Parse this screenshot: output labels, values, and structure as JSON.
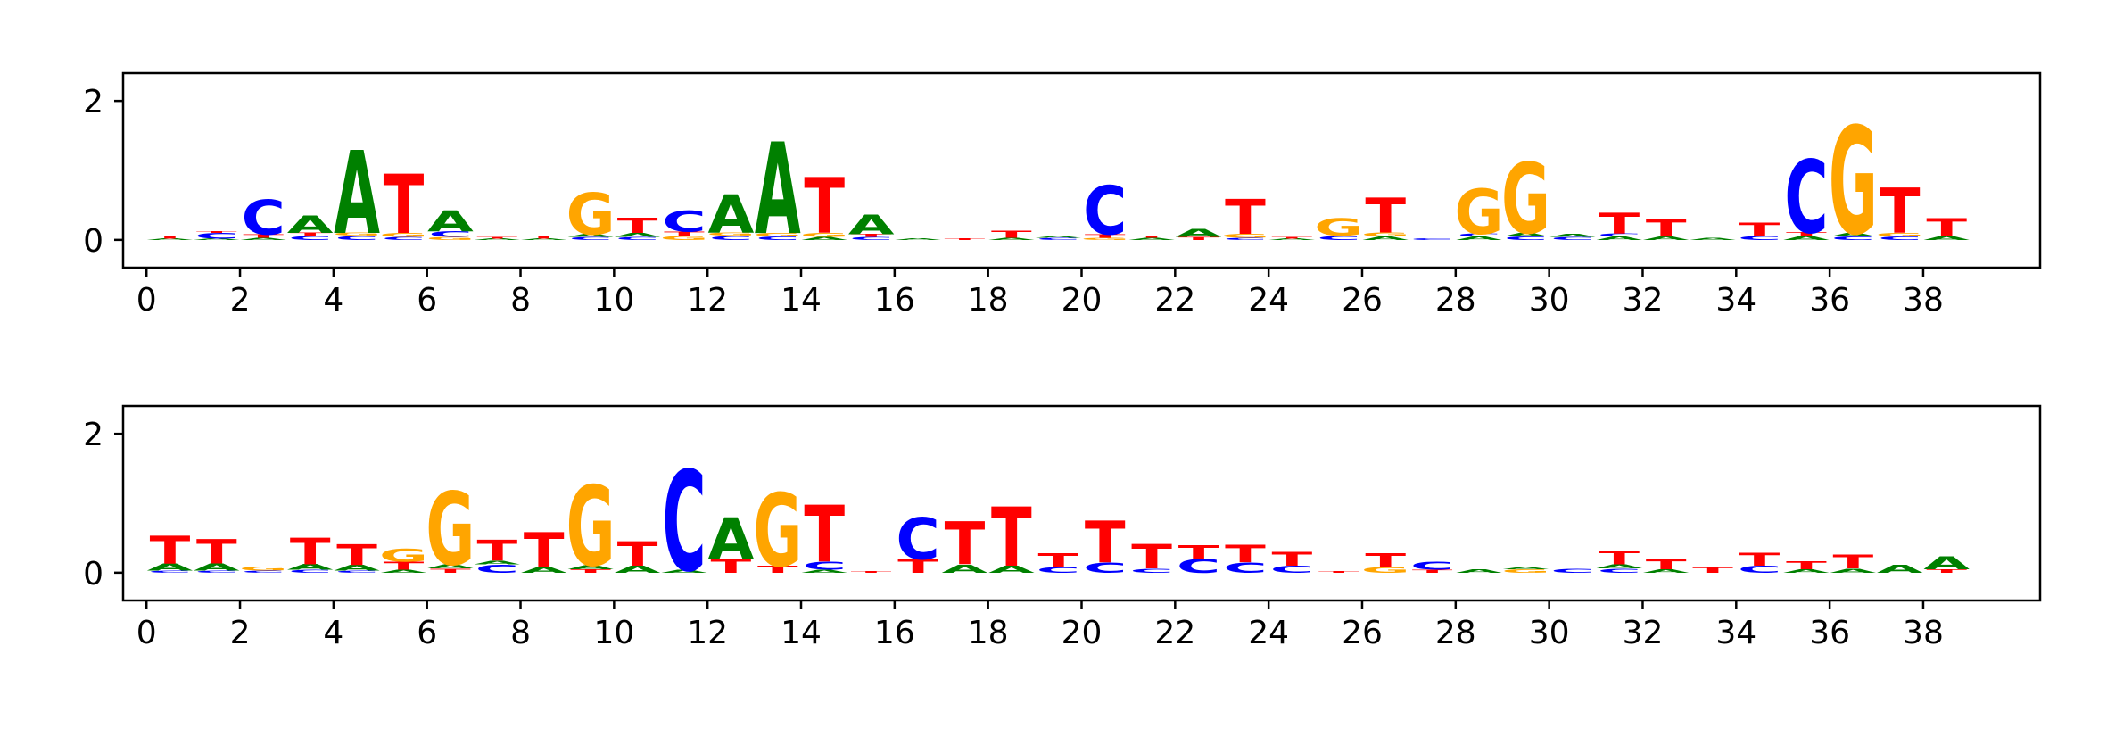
{
  "colors": {
    "A": "#008000",
    "C": "#0000ff",
    "G": "#ffa500",
    "T": "#ff0000",
    "axis": "#000000"
  },
  "chart_data": [
    {
      "type": "sequence-logo",
      "x_ticks": [
        "0",
        "2",
        "4",
        "6",
        "8",
        "10",
        "12",
        "14",
        "16",
        "18",
        "20",
        "22",
        "24",
        "26",
        "28",
        "30",
        "32",
        "34",
        "36",
        "38"
      ],
      "y_ticks": [
        "0",
        "2"
      ],
      "xlim": [
        -0.5,
        40.5
      ],
      "ylim": [
        -0.4,
        2.4
      ],
      "positions": [
        {
          "x": 0,
          "stack": [
            [
              "A",
              0.02
            ],
            [
              "T",
              0.04
            ]
          ]
        },
        {
          "x": 1,
          "stack": [
            [
              "A",
              0.02
            ],
            [
              "C",
              0.08
            ],
            [
              "T",
              0.02
            ]
          ]
        },
        {
          "x": 2,
          "stack": [
            [
              "A",
              0.03
            ],
            [
              "T",
              0.05
            ],
            [
              "C",
              0.5
            ]
          ]
        },
        {
          "x": 3,
          "stack": [
            [
              "C",
              0.06
            ],
            [
              "T",
              0.04
            ],
            [
              "A",
              0.25
            ]
          ]
        },
        {
          "x": 4,
          "stack": [
            [
              "C",
              0.06
            ],
            [
              "G",
              0.04
            ],
            [
              "A",
              1.2
            ]
          ]
        },
        {
          "x": 5,
          "stack": [
            [
              "C",
              0.04
            ],
            [
              "G",
              0.06
            ],
            [
              "T",
              0.85
            ]
          ]
        },
        {
          "x": 6,
          "stack": [
            [
              "G",
              0.04
            ],
            [
              "C",
              0.08
            ],
            [
              "A",
              0.3
            ]
          ]
        },
        {
          "x": 7,
          "stack": [
            [
              "A",
              0.02
            ],
            [
              "T",
              0.02
            ]
          ]
        },
        {
          "x": 8,
          "stack": [
            [
              "A",
              0.02
            ],
            [
              "T",
              0.04
            ]
          ]
        },
        {
          "x": 9,
          "stack": [
            [
              "C",
              0.04
            ],
            [
              "A",
              0.04
            ],
            [
              "G",
              0.6
            ]
          ]
        },
        {
          "x": 10,
          "stack": [
            [
              "C",
              0.04
            ],
            [
              "A",
              0.06
            ],
            [
              "T",
              0.22
            ]
          ]
        },
        {
          "x": 11,
          "stack": [
            [
              "G",
              0.06
            ],
            [
              "T",
              0.06
            ],
            [
              "C",
              0.3
            ]
          ]
        },
        {
          "x": 12,
          "stack": [
            [
              "C",
              0.06
            ],
            [
              "G",
              0.04
            ],
            [
              "A",
              0.55
            ]
          ]
        },
        {
          "x": 13,
          "stack": [
            [
              "C",
              0.05
            ],
            [
              "G",
              0.05
            ],
            [
              "A",
              1.32
            ]
          ]
        },
        {
          "x": 14,
          "stack": [
            [
              "A",
              0.04
            ],
            [
              "G",
              0.06
            ],
            [
              "T",
              0.8
            ]
          ]
        },
        {
          "x": 15,
          "stack": [
            [
              "C",
              0.04
            ],
            [
              "T",
              0.04
            ],
            [
              "A",
              0.28
            ]
          ]
        },
        {
          "x": 16,
          "stack": [
            [
              "A",
              0.02
            ]
          ]
        },
        {
          "x": 17,
          "stack": [
            [
              "T",
              0.02
            ]
          ]
        },
        {
          "x": 18,
          "stack": [
            [
              "A",
              0.03
            ],
            [
              "T",
              0.1
            ]
          ]
        },
        {
          "x": 19,
          "stack": [
            [
              "C",
              0.03
            ],
            [
              "A",
              0.02
            ]
          ]
        },
        {
          "x": 20,
          "stack": [
            [
              "G",
              0.03
            ],
            [
              "T",
              0.05
            ],
            [
              "C",
              0.7
            ]
          ]
        },
        {
          "x": 21,
          "stack": [
            [
              "A",
              0.03
            ],
            [
              "T",
              0.02
            ]
          ]
        },
        {
          "x": 22,
          "stack": [
            [
              "T",
              0.04
            ],
            [
              "A",
              0.12
            ]
          ]
        },
        {
          "x": 23,
          "stack": [
            [
              "C",
              0.03
            ],
            [
              "G",
              0.06
            ],
            [
              "T",
              0.5
            ]
          ]
        },
        {
          "x": 24,
          "stack": [
            [
              "A",
              0.02
            ],
            [
              "T",
              0.02
            ]
          ]
        },
        {
          "x": 25,
          "stack": [
            [
              "C",
              0.06
            ],
            [
              "G",
              0.25
            ]
          ]
        },
        {
          "x": 26,
          "stack": [
            [
              "A",
              0.05
            ],
            [
              "G",
              0.06
            ],
            [
              "T",
              0.5
            ]
          ]
        },
        {
          "x": 27,
          "stack": [
            [
              "C",
              0.02
            ]
          ]
        },
        {
          "x": 28,
          "stack": [
            [
              "A",
              0.05
            ],
            [
              "C",
              0.04
            ],
            [
              "G",
              0.65
            ]
          ]
        },
        {
          "x": 29,
          "stack": [
            [
              "C",
              0.05
            ],
            [
              "A",
              0.05
            ],
            [
              "G",
              1.02
            ]
          ]
        },
        {
          "x": 30,
          "stack": [
            [
              "C",
              0.04
            ],
            [
              "A",
              0.04
            ]
          ]
        },
        {
          "x": 31,
          "stack": [
            [
              "A",
              0.05
            ],
            [
              "C",
              0.04
            ],
            [
              "T",
              0.3
            ]
          ]
        },
        {
          "x": 32,
          "stack": [
            [
              "A",
              0.05
            ],
            [
              "T",
              0.25
            ]
          ]
        },
        {
          "x": 33,
          "stack": [
            [
              "A",
              0.03
            ]
          ]
        },
        {
          "x": 34,
          "stack": [
            [
              "C",
              0.06
            ],
            [
              "T",
              0.18
            ]
          ]
        },
        {
          "x": 35,
          "stack": [
            [
              "A",
              0.06
            ],
            [
              "T",
              0.05
            ],
            [
              "C",
              1.05
            ]
          ]
        },
        {
          "x": 36,
          "stack": [
            [
              "C",
              0.05
            ],
            [
              "A",
              0.05
            ],
            [
              "G",
              1.55
            ]
          ]
        },
        {
          "x": 37,
          "stack": [
            [
              "C",
              0.05
            ],
            [
              "G",
              0.05
            ],
            [
              "T",
              0.65
            ]
          ]
        },
        {
          "x": 38,
          "stack": [
            [
              "A",
              0.06
            ],
            [
              "T",
              0.25
            ]
          ]
        }
      ]
    },
    {
      "type": "sequence-logo",
      "x_ticks": [
        "0",
        "2",
        "4",
        "6",
        "8",
        "10",
        "12",
        "14",
        "16",
        "18",
        "20",
        "22",
        "24",
        "26",
        "28",
        "30",
        "32",
        "34",
        "36",
        "38"
      ],
      "y_ticks": [
        "0",
        "2"
      ],
      "xlim": [
        -0.5,
        40.5
      ],
      "ylim": [
        -0.4,
        2.4
      ],
      "positions": [
        {
          "x": 0,
          "stack": [
            [
              "C",
              0.03
            ],
            [
              "A",
              0.1
            ],
            [
              "T",
              0.4
            ]
          ]
        },
        {
          "x": 1,
          "stack": [
            [
              "C",
              0.03
            ],
            [
              "A",
              0.1
            ],
            [
              "T",
              0.35
            ]
          ]
        },
        {
          "x": 2,
          "stack": [
            [
              "C",
              0.03
            ],
            [
              "G",
              0.06
            ]
          ]
        },
        {
          "x": 3,
          "stack": [
            [
              "C",
              0.04
            ],
            [
              "A",
              0.08
            ],
            [
              "T",
              0.38
            ]
          ]
        },
        {
          "x": 4,
          "stack": [
            [
              "C",
              0.03
            ],
            [
              "A",
              0.08
            ],
            [
              "T",
              0.3
            ]
          ]
        },
        {
          "x": 5,
          "stack": [
            [
              "A",
              0.04
            ],
            [
              "T",
              0.12
            ],
            [
              "G",
              0.18
            ]
          ]
        },
        {
          "x": 6,
          "stack": [
            [
              "T",
              0.06
            ],
            [
              "A",
              0.06
            ],
            [
              "G",
              1.05
            ]
          ]
        },
        {
          "x": 7,
          "stack": [
            [
              "C",
              0.12
            ],
            [
              "A",
              0.05
            ],
            [
              "T",
              0.3
            ]
          ]
        },
        {
          "x": 8,
          "stack": [
            [
              "A",
              0.08
            ],
            [
              "T",
              0.5
            ]
          ]
        },
        {
          "x": 9,
          "stack": [
            [
              "T",
              0.05
            ],
            [
              "A",
              0.06
            ],
            [
              "G",
              1.15
            ]
          ]
        },
        {
          "x": 10,
          "stack": [
            [
              "A",
              0.1
            ],
            [
              "T",
              0.35
            ]
          ]
        },
        {
          "x": 11,
          "stack": [
            [
              "A",
              0.04
            ],
            [
              "C",
              1.45
            ]
          ]
        },
        {
          "x": 12,
          "stack": [
            [
              "T",
              0.2
            ],
            [
              "A",
              0.6
            ]
          ]
        },
        {
          "x": 13,
          "stack": [
            [
              "T",
              0.1
            ],
            [
              "G",
              1.05
            ]
          ]
        },
        {
          "x": 14,
          "stack": [
            [
              "A",
              0.04
            ],
            [
              "C",
              0.12
            ],
            [
              "T",
              0.82
            ]
          ]
        },
        {
          "x": 15,
          "stack": [
            [
              "T",
              0.02
            ]
          ]
        },
        {
          "x": 16,
          "stack": [
            [
              "T",
              0.2
            ],
            [
              "C",
              0.6
            ]
          ]
        },
        {
          "x": 17,
          "stack": [
            [
              "A",
              0.12
            ],
            [
              "T",
              0.62
            ]
          ]
        },
        {
          "x": 18,
          "stack": [
            [
              "A",
              0.1
            ],
            [
              "T",
              0.85
            ]
          ]
        },
        {
          "x": 19,
          "stack": [
            [
              "C",
              0.08
            ],
            [
              "T",
              0.2
            ]
          ]
        },
        {
          "x": 20,
          "stack": [
            [
              "C",
              0.15
            ],
            [
              "T",
              0.6
            ]
          ]
        },
        {
          "x": 21,
          "stack": [
            [
              "C",
              0.06
            ],
            [
              "T",
              0.35
            ]
          ]
        },
        {
          "x": 22,
          "stack": [
            [
              "C",
              0.2
            ],
            [
              "T",
              0.2
            ]
          ]
        },
        {
          "x": 23,
          "stack": [
            [
              "C",
              0.15
            ],
            [
              "T",
              0.25
            ]
          ]
        },
        {
          "x": 24,
          "stack": [
            [
              "C",
              0.1
            ],
            [
              "T",
              0.2
            ]
          ]
        },
        {
          "x": 25,
          "stack": [
            [
              "T",
              0.02
            ]
          ]
        },
        {
          "x": 26,
          "stack": [
            [
              "G",
              0.08
            ],
            [
              "T",
              0.2
            ]
          ]
        },
        {
          "x": 27,
          "stack": [
            [
              "T",
              0.04
            ],
            [
              "C",
              0.12
            ]
          ]
        },
        {
          "x": 28,
          "stack": [
            [
              "A",
              0.05
            ]
          ]
        },
        {
          "x": 29,
          "stack": [
            [
              "G",
              0.05
            ],
            [
              "A",
              0.03
            ]
          ]
        },
        {
          "x": 30,
          "stack": [
            [
              "C",
              0.06
            ]
          ]
        },
        {
          "x": 31,
          "stack": [
            [
              "C",
              0.06
            ],
            [
              "A",
              0.06
            ],
            [
              "T",
              0.2
            ]
          ]
        },
        {
          "x": 32,
          "stack": [
            [
              "A",
              0.05
            ],
            [
              "T",
              0.14
            ]
          ]
        },
        {
          "x": 33,
          "stack": [
            [
              "T",
              0.08
            ]
          ]
        },
        {
          "x": 34,
          "stack": [
            [
              "C",
              0.1
            ],
            [
              "T",
              0.18
            ]
          ]
        },
        {
          "x": 35,
          "stack": [
            [
              "A",
              0.05
            ],
            [
              "T",
              0.12
            ]
          ]
        },
        {
          "x": 36,
          "stack": [
            [
              "A",
              0.06
            ],
            [
              "T",
              0.2
            ]
          ]
        },
        {
          "x": 37,
          "stack": [
            [
              "A",
              0.12
            ]
          ]
        },
        {
          "x": 38,
          "stack": [
            [
              "T",
              0.05
            ],
            [
              "A",
              0.18
            ]
          ]
        }
      ]
    }
  ]
}
